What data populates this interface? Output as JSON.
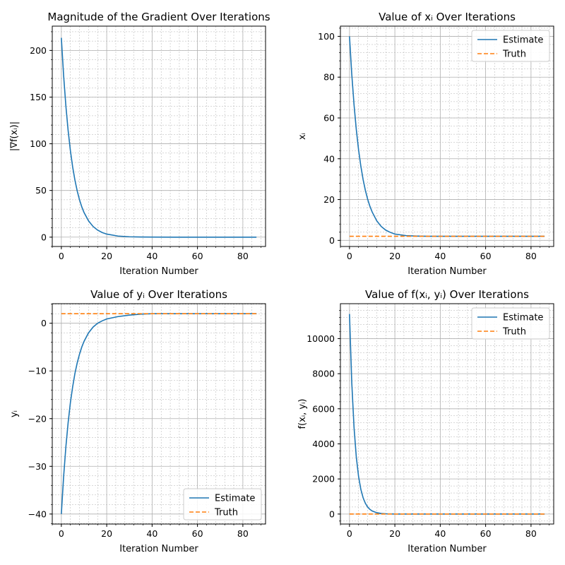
{
  "chart_data": [
    {
      "type": "line",
      "title": "Magnitude of the Gradient Over Iterations",
      "xlabel": "Iteration Number",
      "ylabel": "|∇f(xᵢ)|",
      "xlim": [
        -4,
        90
      ],
      "ylim": [
        -10,
        226
      ],
      "xticks": [
        0,
        20,
        40,
        60,
        80
      ],
      "yticks": [
        0,
        50,
        100,
        150,
        200
      ],
      "ytick_labels": [
        "0",
        "50",
        "100",
        "150",
        "200"
      ],
      "grid": true,
      "legend": null,
      "series": [
        {
          "style": "solid",
          "color": "#1f77b4",
          "x": [
            0,
            1,
            2,
            3,
            4,
            5,
            6,
            7,
            8,
            9,
            10,
            12,
            14,
            16,
            18,
            20,
            25,
            30,
            35,
            40,
            50,
            60,
            70,
            80,
            86
          ],
          "y": [
            213.5,
            173.2,
            140.5,
            114.0,
            92.5,
            75.0,
            60.9,
            49.4,
            40.1,
            32.5,
            26.4,
            17.4,
            11.4,
            7.5,
            4.95,
            3.26,
            1.15,
            0.41,
            0.14,
            0.05,
            0.0,
            0.0,
            0.0,
            0.0,
            0.0
          ]
        }
      ]
    },
    {
      "type": "line",
      "title": "Value of xᵢ Over Iterations",
      "xlabel": "Iteration Number",
      "ylabel": "xᵢ",
      "xlim": [
        -4,
        90
      ],
      "ylim": [
        -3,
        105
      ],
      "xticks": [
        0,
        20,
        40,
        60,
        80
      ],
      "yticks": [
        0,
        20,
        40,
        60,
        80,
        100
      ],
      "ytick_labels": [
        "0",
        "20",
        "40",
        "60",
        "80",
        "100"
      ],
      "grid": true,
      "legend": "top-right",
      "series": [
        {
          "name": "Estimate",
          "style": "solid",
          "color": "#1f77b4",
          "x": [
            0,
            1,
            2,
            3,
            4,
            5,
            6,
            7,
            8,
            9,
            10,
            12,
            14,
            16,
            18,
            20,
            25,
            30,
            35,
            40,
            50,
            60,
            70,
            80,
            86
          ],
          "y": [
            100.0,
            81.5,
            66.5,
            54.3,
            44.4,
            36.4,
            29.8,
            24.5,
            20.2,
            16.7,
            13.9,
            9.6,
            6.8,
            5.0,
            3.9,
            3.1,
            2.3,
            2.1,
            2.0,
            2.0,
            2.0,
            2.0,
            2.0,
            2.0,
            2.0
          ]
        },
        {
          "name": "Truth",
          "style": "dashed",
          "color": "#ff7f0e",
          "x": [
            0,
            86
          ],
          "y": [
            2,
            2
          ]
        }
      ]
    },
    {
      "type": "line",
      "title": "Value of yᵢ Over Iterations",
      "xlabel": "Iteration Number",
      "ylabel": "yᵢ",
      "xlim": [
        -4,
        90
      ],
      "ylim": [
        -42.1,
        4.1
      ],
      "xticks": [
        0,
        20,
        40,
        60,
        80
      ],
      "yticks": [
        -40,
        -30,
        -20,
        -10,
        0
      ],
      "ytick_labels": [
        "−40",
        "−30",
        "−20",
        "−10",
        "0"
      ],
      "grid": true,
      "legend": "bottom-right",
      "series": [
        {
          "name": "Estimate",
          "style": "solid",
          "color": "#1f77b4",
          "x": [
            0,
            1,
            2,
            3,
            4,
            5,
            6,
            7,
            8,
            9,
            10,
            12,
            14,
            16,
            18,
            20,
            25,
            30,
            35,
            40,
            50,
            60,
            70,
            80,
            86
          ],
          "y": [
            -40.0,
            -32.2,
            -25.9,
            -20.8,
            -16.6,
            -13.3,
            -10.5,
            -8.3,
            -6.5,
            -5.0,
            -3.8,
            -2.0,
            -0.8,
            0.0,
            0.5,
            0.9,
            1.4,
            1.7,
            1.9,
            2.0,
            2.0,
            2.0,
            2.0,
            2.0,
            2.0
          ]
        },
        {
          "name": "Truth",
          "style": "dashed",
          "color": "#ff7f0e",
          "x": [
            0,
            86
          ],
          "y": [
            2,
            2
          ]
        }
      ]
    },
    {
      "type": "line",
      "title": "Value of f(xᵢ, yᵢ) Over Iterations",
      "xlabel": "Iteration Number",
      "ylabel": "f(xᵢ, yᵢ)",
      "xlim": [
        -4,
        90
      ],
      "ylim": [
        -570,
        11990
      ],
      "xticks": [
        0,
        20,
        40,
        60,
        80
      ],
      "yticks": [
        0,
        2000,
        4000,
        6000,
        8000,
        10000
      ],
      "ytick_labels": [
        "0",
        "2000",
        "4000",
        "6000",
        "8000",
        "10000"
      ],
      "grid": true,
      "legend": "top-right",
      "series": [
        {
          "name": "Estimate",
          "style": "solid",
          "color": "#1f77b4",
          "x": [
            0,
            1,
            2,
            3,
            4,
            5,
            6,
            7,
            8,
            9,
            10,
            12,
            14,
            16,
            18,
            20,
            25,
            30,
            40,
            50,
            60,
            70,
            80,
            86
          ],
          "y": [
            11400,
            7500,
            4940,
            3250,
            2140,
            1410,
            930,
            612,
            403,
            265,
            175,
            76,
            33,
            14,
            6,
            3,
            0.5,
            0,
            0,
            0,
            0,
            0,
            0,
            0
          ]
        },
        {
          "name": "Truth",
          "style": "dashed",
          "color": "#ff7f0e",
          "x": [
            0,
            86
          ],
          "y": [
            0,
            0
          ]
        }
      ]
    }
  ]
}
